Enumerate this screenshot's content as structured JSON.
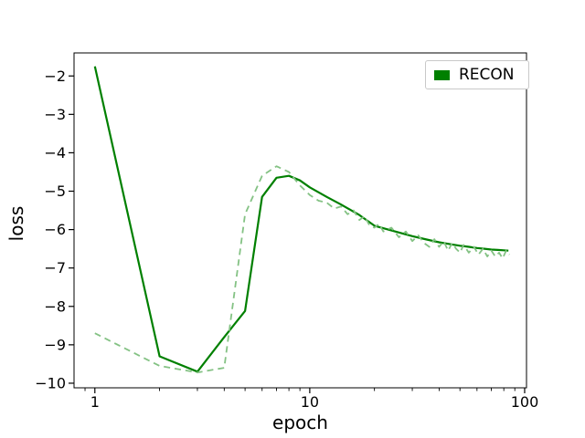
{
  "figure": {
    "background": "#ffffff",
    "xlabel": "epoch",
    "ylabel": "loss"
  },
  "legend": {
    "position": "upper right",
    "entries": [
      {
        "label": "RECON",
        "swatch_color": "#008000",
        "swatch_type": "filled-patch"
      }
    ]
  },
  "chart_data": {
    "type": "line",
    "title": "",
    "xlabel": "epoch",
    "ylabel": "loss",
    "x_scale": "log",
    "y_scale": "linear",
    "xlim": [
      0.8,
      102
    ],
    "ylim": [
      -10.12,
      -1.4
    ],
    "grid": false,
    "legend_position": "upper right",
    "x_major_ticks": [
      1,
      10,
      100
    ],
    "x_major_tick_labels": [
      "1",
      "10",
      "100"
    ],
    "x_minor_ticks": [
      0.9,
      2,
      3,
      4,
      5,
      6,
      7,
      8,
      9,
      20,
      30,
      40,
      50,
      60,
      70,
      80,
      90
    ],
    "y_ticks": [
      -2,
      -3,
      -4,
      -5,
      -6,
      -7,
      -8,
      -9,
      -10
    ],
    "y_tick_labels": [
      "−2",
      "−3",
      "−4",
      "−5",
      "−6",
      "−7",
      "−8",
      "−9",
      "−10"
    ],
    "series": [
      {
        "name": "RECON",
        "line_style": "solid",
        "color": "#008000",
        "linewidth": 2.2,
        "x": [
          1,
          2,
          3,
          4,
          5,
          6,
          7,
          8,
          9,
          10,
          12,
          14,
          17,
          20,
          25,
          30,
          35,
          40,
          45,
          50,
          55,
          60,
          65,
          70,
          75,
          80,
          84
        ],
        "y": [
          -1.75,
          -9.3,
          -9.7,
          -8.8,
          -8.12,
          -5.15,
          -4.65,
          -4.6,
          -4.72,
          -4.9,
          -5.15,
          -5.35,
          -5.62,
          -5.9,
          -6.05,
          -6.17,
          -6.26,
          -6.33,
          -6.38,
          -6.42,
          -6.45,
          -6.48,
          -6.5,
          -6.52,
          -6.53,
          -6.54,
          -6.55
        ]
      },
      {
        "name": "RECON (dashed)",
        "line_style": "dashed",
        "color": "#84c284",
        "linewidth": 1.8,
        "x": [
          1,
          2,
          3,
          4,
          5,
          6,
          7,
          8,
          9,
          10,
          11,
          12,
          13,
          14,
          15,
          16,
          17,
          18,
          19,
          20,
          21,
          22,
          24,
          26,
          28,
          30,
          32,
          34,
          36,
          38,
          40,
          42,
          44,
          46,
          48,
          50,
          52,
          55,
          58,
          61,
          64,
          67,
          70,
          73,
          76,
          79,
          82,
          85
        ],
        "y": [
          -8.7,
          -9.55,
          -9.72,
          -9.6,
          -5.6,
          -4.6,
          -4.35,
          -4.5,
          -4.85,
          -5.1,
          -5.25,
          -5.3,
          -5.45,
          -5.4,
          -5.6,
          -5.5,
          -5.75,
          -5.65,
          -5.9,
          -5.95,
          -5.85,
          -6.05,
          -5.95,
          -6.2,
          -6.05,
          -6.3,
          -6.15,
          -6.35,
          -6.45,
          -6.25,
          -6.45,
          -6.3,
          -6.55,
          -6.35,
          -6.5,
          -6.6,
          -6.4,
          -6.6,
          -6.45,
          -6.65,
          -6.5,
          -6.7,
          -6.55,
          -6.7,
          -6.6,
          -6.75,
          -6.55,
          -6.65
        ]
      }
    ]
  }
}
